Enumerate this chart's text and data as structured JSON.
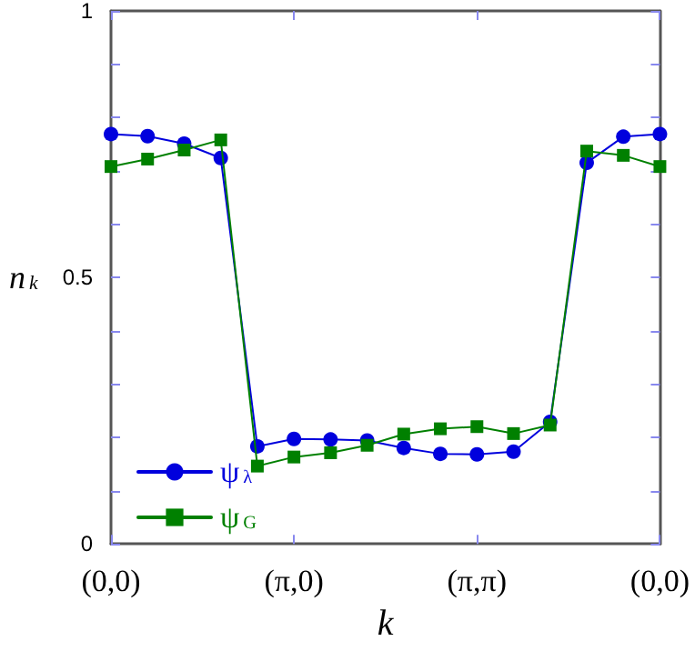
{
  "chart_data": {
    "type": "line",
    "xlabel": "k",
    "ylabel": "n$_{k}$",
    "categories": [
      "(0,0)",
      null,
      null,
      null,
      null,
      "(π,0)",
      null,
      null,
      null,
      null,
      "(π,π)",
      null,
      null,
      null,
      null,
      "(0,0)"
    ],
    "series": [
      {
        "name": "ψ$_{λ}$",
        "color": "#0000dd",
        "marker": "circle",
        "values": [
          0.769,
          0.765,
          0.751,
          0.724,
          0.183,
          0.197,
          0.196,
          0.194,
          0.18,
          0.169,
          0.168,
          0.173,
          0.229,
          0.715,
          0.764,
          0.769
        ]
      },
      {
        "name": "ψ$_{G}$",
        "color": "#008000",
        "marker": "square",
        "values": [
          0.708,
          0.722,
          0.739,
          0.758,
          0.146,
          0.163,
          0.171,
          0.185,
          0.206,
          0.216,
          0.22,
          0.207,
          0.223,
          0.737,
          0.729,
          0.708
        ]
      }
    ],
    "ylim": [
      0,
      1
    ],
    "yticks": [
      0,
      {
        "value": 0.1,
        "label": null
      },
      {
        "value": 0.2,
        "label": null
      },
      {
        "value": 0.3,
        "label": null
      },
      {
        "value": 0.4,
        "label": null
      },
      0.5,
      {
        "value": 0.6,
        "label": null
      },
      {
        "value": 0.7,
        "label": null
      },
      {
        "value": 0.8,
        "label": null
      },
      {
        "value": 0.9,
        "label": null
      },
      1
    ],
    "grid": false,
    "legend": "bottom left",
    "line_style": "solid"
  }
}
